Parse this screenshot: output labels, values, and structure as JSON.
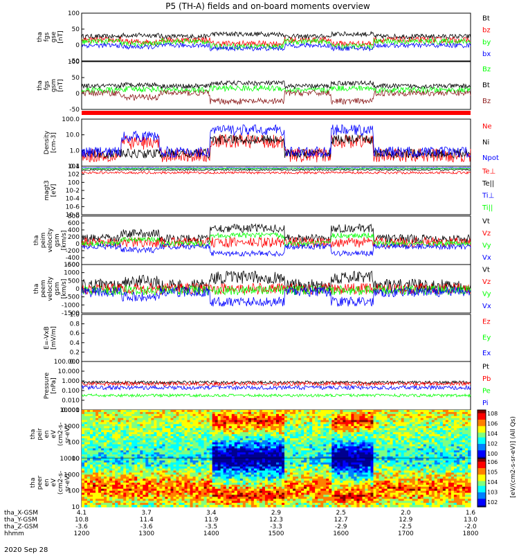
{
  "title": "P5 (TH-A) fields and on-board moments overview",
  "colors": {
    "black": "#000000",
    "red": "#ff0000",
    "green": "#00ff00",
    "blue": "#0000ff",
    "darkred": "#8b1a1a",
    "axis": "#000000"
  },
  "chart_data": {
    "type": "line",
    "title": "P5 (TH-A) fields and on-board moments overview",
    "x_axis_rows": [
      {
        "label": "tha_X-GSM",
        "values": [
          "4.1",
          "3.7",
          "3.4",
          "2.9",
          "2.5",
          "2.0",
          "1.6"
        ]
      },
      {
        "label": "tha_Y-GSM",
        "values": [
          "10.8",
          "11.4",
          "11.9",
          "12.3",
          "12.7",
          "12.9",
          "13.0"
        ]
      },
      {
        "label": "tha_Z-GSM",
        "values": [
          "-3.6",
          "-3.6",
          "-3.5",
          "-3.3",
          "-2.9",
          "-2.5",
          "-2.0"
        ]
      },
      {
        "label": "hhmm",
        "values": [
          "1200",
          "1300",
          "1400",
          "1500",
          "1600",
          "1700",
          "1800"
        ]
      }
    ],
    "date_label": "2020 Sep 28",
    "xlim": [
      "1200",
      "1800"
    ],
    "panels": [
      {
        "id": "fgs_gse",
        "ylabel": [
          "tha",
          "fgs",
          "gse",
          "[nT]"
        ],
        "ylim": [
          -60,
          100
        ],
        "ticks": [
          "100",
          "50",
          "0",
          "-50"
        ],
        "legend": [
          {
            "name": "Bt",
            "color": "black"
          },
          {
            "name": "bz",
            "color": "red"
          },
          {
            "name": "by",
            "color": "green"
          },
          {
            "name": "bx",
            "color": "blue"
          }
        ]
      },
      {
        "id": "fgs_gsm",
        "ylabel": [
          "tha",
          "fgs",
          "gsm",
          "[nT]"
        ],
        "ylim": [
          -60,
          100
        ],
        "ticks": [
          "100",
          "50",
          "0",
          "-50"
        ],
        "legend": [
          {
            "name": "Bz",
            "color": "green"
          },
          {
            "name": "Bt",
            "color": "black"
          },
          {
            "name": "Bz",
            "color": "darkred"
          }
        ]
      },
      {
        "id": "density",
        "ylabel": [
          "Density",
          "[cm-3]"
        ],
        "scale": "log",
        "ylim": [
          0.1,
          100
        ],
        "ticks": [
          "100.0",
          "10.0",
          "1.0",
          "0.1"
        ],
        "legend": [
          {
            "name": "Ne",
            "color": "red"
          },
          {
            "name": "Ni",
            "color": "black"
          },
          {
            "name": "Npot",
            "color": "blue"
          }
        ]
      },
      {
        "id": "temperature",
        "ylabel": [
          "magt3",
          "[eV]"
        ],
        "scale": "log",
        "ticks": [
          "10^4",
          "10^2",
          "10^0",
          "10^-2",
          "10^-4",
          "10^-6",
          "10^-8"
        ],
        "legend": [
          {
            "name": "Te⊥",
            "color": "red"
          },
          {
            "name": "Te||",
            "color": "black"
          },
          {
            "name": "Ti⊥",
            "color": "blue"
          },
          {
            "name": "Ti||",
            "color": "green"
          }
        ]
      },
      {
        "id": "peim_velocity",
        "ylabel": [
          "tha",
          "peim",
          "velocity",
          "gsm",
          "[km/s]"
        ],
        "ylim": [
          -600,
          800
        ],
        "ticks": [
          "800",
          "600",
          "400",
          "200",
          "0",
          "-200",
          "-400",
          "-600"
        ],
        "legend": [
          {
            "name": "Vt",
            "color": "black"
          },
          {
            "name": "Vz",
            "color": "red"
          },
          {
            "name": "Vy",
            "color": "green"
          },
          {
            "name": "Vx",
            "color": "blue"
          }
        ]
      },
      {
        "id": "peem_velocity",
        "ylabel": [
          "tha",
          "peem",
          "velocity",
          "gsm",
          "[km/s]"
        ],
        "ylim": [
          -1500,
          1500
        ],
        "ticks": [
          "1500",
          "1000",
          "500",
          "0",
          "-500",
          "-1000",
          "-1500"
        ],
        "legend": [
          {
            "name": "Vt",
            "color": "black"
          },
          {
            "name": "Vz",
            "color": "red"
          },
          {
            "name": "Vy",
            "color": "green"
          },
          {
            "name": "Vx",
            "color": "blue"
          }
        ]
      },
      {
        "id": "efield",
        "ylabel": [
          "E=-VxB",
          "[mV/m]"
        ],
        "ylim": [
          0,
          1
        ],
        "ticks": [
          "1.0",
          "0.8",
          "0.6",
          "0.4",
          "0.2",
          "0.0"
        ],
        "legend": [
          {
            "name": "Ez",
            "color": "red"
          },
          {
            "name": "Ey",
            "color": "green"
          },
          {
            "name": "Ex",
            "color": "blue"
          }
        ]
      },
      {
        "id": "pressure",
        "ylabel": [
          "Pressure",
          "[nPa]"
        ],
        "scale": "log",
        "ylim": [
          0.001,
          100
        ],
        "ticks": [
          "100.000",
          "10.000",
          "1.000",
          "0.100",
          "0.010",
          "0.001"
        ],
        "legend": [
          {
            "name": "Pt",
            "color": "black"
          },
          {
            "name": "Pb",
            "color": "red"
          },
          {
            "name": "Pe",
            "color": "green"
          },
          {
            "name": "Pi",
            "color": "blue"
          }
        ]
      },
      {
        "id": "peir_eflux",
        "ylabel": [
          "tha",
          "peir",
          "en",
          "eV",
          "(cm2-s-",
          "sr-eV)"
        ],
        "type": "heatmap",
        "ylim": [
          10,
          10000
        ],
        "ticks": [
          "10000",
          "1000",
          "100",
          "10"
        ]
      },
      {
        "id": "peer_eflux",
        "ylabel": [
          "tha",
          "peer",
          "en",
          "eV",
          "(cm2-s-",
          "sr-eV)"
        ],
        "type": "heatmap",
        "ylim": [
          10,
          10000
        ],
        "ticks": [
          "10000",
          "1000",
          "100",
          "10"
        ]
      }
    ],
    "colorbar": {
      "label": "[eV/(cm2-s-sr-eV)]  (All Qs)",
      "ticks": [
        "10^8",
        "10^6",
        "10^4",
        "10^2",
        "10^0"
      ],
      "ticks_lower": [
        "10^6",
        "10^5",
        "10^4",
        "10^3",
        "10^2"
      ]
    }
  }
}
